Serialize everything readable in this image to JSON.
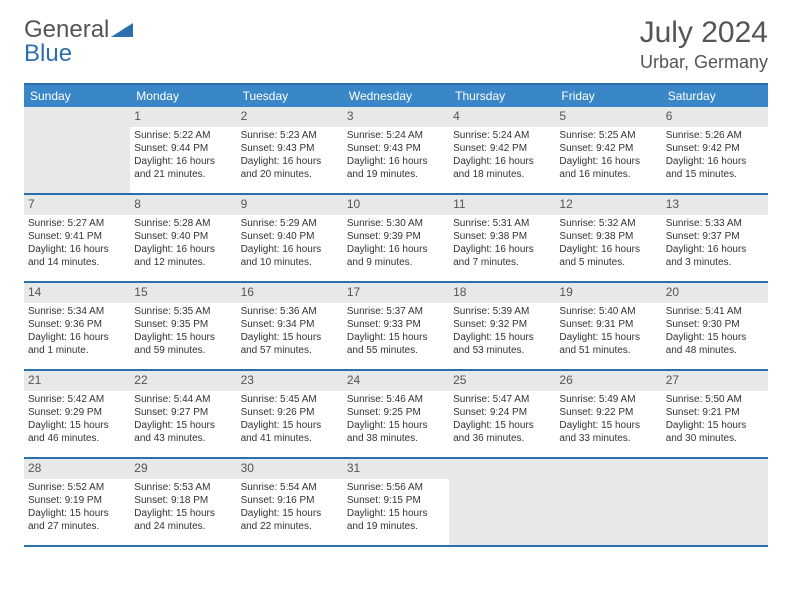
{
  "logo": {
    "text_a": "General ",
    "text_b": "Blue"
  },
  "title": "July 2024",
  "location": "Urbar, Germany",
  "colors": {
    "header_bar": "#3a87c7",
    "border": "#2c6fad",
    "daynum_bg": "#e8e8e8",
    "text": "#333333",
    "muted": "#555555"
  },
  "dow": [
    "Sunday",
    "Monday",
    "Tuesday",
    "Wednesday",
    "Thursday",
    "Friday",
    "Saturday"
  ],
  "weeks": [
    [
      null,
      {
        "n": "1",
        "sr": "Sunrise: 5:22 AM",
        "ss": "Sunset: 9:44 PM",
        "dl": "Daylight: 16 hours and 21 minutes."
      },
      {
        "n": "2",
        "sr": "Sunrise: 5:23 AM",
        "ss": "Sunset: 9:43 PM",
        "dl": "Daylight: 16 hours and 20 minutes."
      },
      {
        "n": "3",
        "sr": "Sunrise: 5:24 AM",
        "ss": "Sunset: 9:43 PM",
        "dl": "Daylight: 16 hours and 19 minutes."
      },
      {
        "n": "4",
        "sr": "Sunrise: 5:24 AM",
        "ss": "Sunset: 9:42 PM",
        "dl": "Daylight: 16 hours and 18 minutes."
      },
      {
        "n": "5",
        "sr": "Sunrise: 5:25 AM",
        "ss": "Sunset: 9:42 PM",
        "dl": "Daylight: 16 hours and 16 minutes."
      },
      {
        "n": "6",
        "sr": "Sunrise: 5:26 AM",
        "ss": "Sunset: 9:42 PM",
        "dl": "Daylight: 16 hours and 15 minutes."
      }
    ],
    [
      {
        "n": "7",
        "sr": "Sunrise: 5:27 AM",
        "ss": "Sunset: 9:41 PM",
        "dl": "Daylight: 16 hours and 14 minutes."
      },
      {
        "n": "8",
        "sr": "Sunrise: 5:28 AM",
        "ss": "Sunset: 9:40 PM",
        "dl": "Daylight: 16 hours and 12 minutes."
      },
      {
        "n": "9",
        "sr": "Sunrise: 5:29 AM",
        "ss": "Sunset: 9:40 PM",
        "dl": "Daylight: 16 hours and 10 minutes."
      },
      {
        "n": "10",
        "sr": "Sunrise: 5:30 AM",
        "ss": "Sunset: 9:39 PM",
        "dl": "Daylight: 16 hours and 9 minutes."
      },
      {
        "n": "11",
        "sr": "Sunrise: 5:31 AM",
        "ss": "Sunset: 9:38 PM",
        "dl": "Daylight: 16 hours and 7 minutes."
      },
      {
        "n": "12",
        "sr": "Sunrise: 5:32 AM",
        "ss": "Sunset: 9:38 PM",
        "dl": "Daylight: 16 hours and 5 minutes."
      },
      {
        "n": "13",
        "sr": "Sunrise: 5:33 AM",
        "ss": "Sunset: 9:37 PM",
        "dl": "Daylight: 16 hours and 3 minutes."
      }
    ],
    [
      {
        "n": "14",
        "sr": "Sunrise: 5:34 AM",
        "ss": "Sunset: 9:36 PM",
        "dl": "Daylight: 16 hours and 1 minute."
      },
      {
        "n": "15",
        "sr": "Sunrise: 5:35 AM",
        "ss": "Sunset: 9:35 PM",
        "dl": "Daylight: 15 hours and 59 minutes."
      },
      {
        "n": "16",
        "sr": "Sunrise: 5:36 AM",
        "ss": "Sunset: 9:34 PM",
        "dl": "Daylight: 15 hours and 57 minutes."
      },
      {
        "n": "17",
        "sr": "Sunrise: 5:37 AM",
        "ss": "Sunset: 9:33 PM",
        "dl": "Daylight: 15 hours and 55 minutes."
      },
      {
        "n": "18",
        "sr": "Sunrise: 5:39 AM",
        "ss": "Sunset: 9:32 PM",
        "dl": "Daylight: 15 hours and 53 minutes."
      },
      {
        "n": "19",
        "sr": "Sunrise: 5:40 AM",
        "ss": "Sunset: 9:31 PM",
        "dl": "Daylight: 15 hours and 51 minutes."
      },
      {
        "n": "20",
        "sr": "Sunrise: 5:41 AM",
        "ss": "Sunset: 9:30 PM",
        "dl": "Daylight: 15 hours and 48 minutes."
      }
    ],
    [
      {
        "n": "21",
        "sr": "Sunrise: 5:42 AM",
        "ss": "Sunset: 9:29 PM",
        "dl": "Daylight: 15 hours and 46 minutes."
      },
      {
        "n": "22",
        "sr": "Sunrise: 5:44 AM",
        "ss": "Sunset: 9:27 PM",
        "dl": "Daylight: 15 hours and 43 minutes."
      },
      {
        "n": "23",
        "sr": "Sunrise: 5:45 AM",
        "ss": "Sunset: 9:26 PM",
        "dl": "Daylight: 15 hours and 41 minutes."
      },
      {
        "n": "24",
        "sr": "Sunrise: 5:46 AM",
        "ss": "Sunset: 9:25 PM",
        "dl": "Daylight: 15 hours and 38 minutes."
      },
      {
        "n": "25",
        "sr": "Sunrise: 5:47 AM",
        "ss": "Sunset: 9:24 PM",
        "dl": "Daylight: 15 hours and 36 minutes."
      },
      {
        "n": "26",
        "sr": "Sunrise: 5:49 AM",
        "ss": "Sunset: 9:22 PM",
        "dl": "Daylight: 15 hours and 33 minutes."
      },
      {
        "n": "27",
        "sr": "Sunrise: 5:50 AM",
        "ss": "Sunset: 9:21 PM",
        "dl": "Daylight: 15 hours and 30 minutes."
      }
    ],
    [
      {
        "n": "28",
        "sr": "Sunrise: 5:52 AM",
        "ss": "Sunset: 9:19 PM",
        "dl": "Daylight: 15 hours and 27 minutes."
      },
      {
        "n": "29",
        "sr": "Sunrise: 5:53 AM",
        "ss": "Sunset: 9:18 PM",
        "dl": "Daylight: 15 hours and 24 minutes."
      },
      {
        "n": "30",
        "sr": "Sunrise: 5:54 AM",
        "ss": "Sunset: 9:16 PM",
        "dl": "Daylight: 15 hours and 22 minutes."
      },
      {
        "n": "31",
        "sr": "Sunrise: 5:56 AM",
        "ss": "Sunset: 9:15 PM",
        "dl": "Daylight: 15 hours and 19 minutes."
      },
      null,
      null,
      null
    ]
  ]
}
